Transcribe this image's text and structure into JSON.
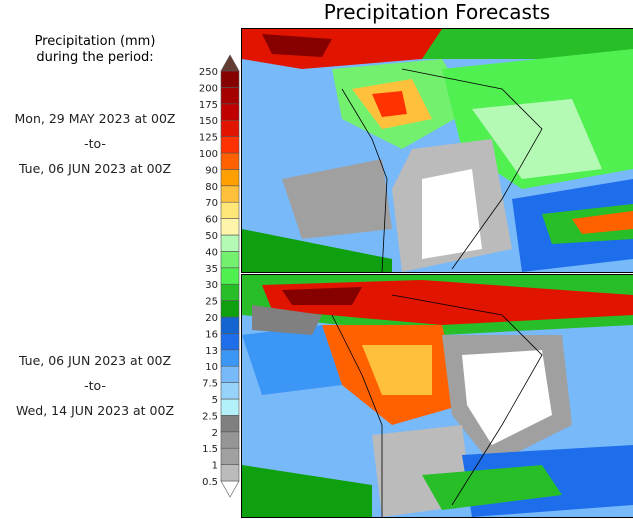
{
  "title": "Precipitation Forecasts",
  "legend_title": [
    "Precipitation (mm)",
    "during the period:"
  ],
  "periods": [
    {
      "start": "Mon, 29 MAY 2023 at 00Z",
      "sep": "-to-",
      "end": "Tue, 06 JUN 2023 at 00Z"
    },
    {
      "start": "Tue, 06 JUN 2023 at 00Z",
      "sep": "-to-",
      "end": "Wed, 14 JUN 2023 at 00Z"
    }
  ],
  "colorbar": {
    "labels": [
      "0.5",
      "1",
      "1.5",
      "2",
      "2.5",
      "5",
      "7.5",
      "10",
      "13",
      "16",
      "20",
      "25",
      "30",
      "35",
      "40",
      "50",
      "60",
      "70",
      "80",
      "90",
      "100",
      "125",
      "150",
      "175",
      "200",
      "250"
    ],
    "colors": [
      "#bbbbbb",
      "#a0a0a0",
      "#969696",
      "#808080",
      "#b4f0fa",
      "#96d2fa",
      "#78b9fa",
      "#3c96f5",
      "#1e6eeb",
      "#1464d2",
      "#0fa00f",
      "#28be28",
      "#50f050",
      "#73f06e",
      "#b4fab4",
      "#fff5aa",
      "#ffe678",
      "#ffc13c",
      "#ffa000",
      "#ff6000",
      "#ff3200",
      "#e11400",
      "#c00000",
      "#a50000",
      "#870000"
    ],
    "over_color": "#643c32",
    "under_color": "#ffffff"
  }
}
